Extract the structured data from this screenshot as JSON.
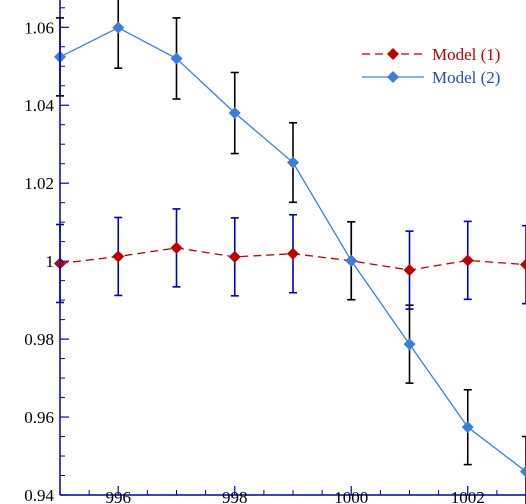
{
  "chart_data": {
    "type": "line",
    "title": "",
    "xlabel": "",
    "ylabel": "",
    "xlim": [
      995,
      1003
    ],
    "ylim": [
      0.94,
      1.067
    ],
    "x_ticks": [
      996,
      998,
      1000,
      1002
    ],
    "x_tick_labels": [
      "996",
      "998",
      "1000",
      "1002"
    ],
    "y_ticks": [
      0.94,
      0.96,
      0.98,
      1.0,
      1.02,
      1.04,
      1.06
    ],
    "y_tick_labels": [
      "0.94",
      "0.96",
      "0.98",
      "1",
      "1.02",
      "1.04",
      "1.06"
    ],
    "grid": false,
    "legend_position": "top-right",
    "x": [
      995,
      996,
      997,
      998,
      999,
      1000,
      1001,
      1002,
      1003
    ],
    "series": [
      {
        "name": "Model (1)",
        "values": [
          0.9994,
          1.0012,
          1.0034,
          1.0011,
          1.0019,
          1.0001,
          0.9977,
          1.0002,
          0.9991
        ],
        "errors": [
          0.01,
          0.01,
          0.01,
          0.01,
          0.01,
          0.01,
          0.01,
          0.01,
          0.01
        ],
        "line_color": "#c00000",
        "marker_color": "#c00000",
        "error_color": "#0000c0",
        "line_style": "dashed",
        "marker": "diamond"
      },
      {
        "name": "Model (2)",
        "values": [
          1.0524,
          1.0599,
          1.052,
          1.038,
          1.0253,
          1.0001,
          0.9787,
          0.9574,
          0.946
        ],
        "errors": [
          0.01,
          0.0104,
          0.0104,
          0.0104,
          0.0102,
          0.01,
          0.01,
          0.0096,
          0.009
        ],
        "line_color": "#3a7fe0",
        "marker_color": "#3a7fe0",
        "error_color": "#000000",
        "line_style": "solid",
        "marker": "diamond"
      }
    ]
  },
  "colors": {
    "axis": "#0000c0",
    "model1_legend_text": "#c00000",
    "model2_legend_text": "#2050c0"
  }
}
